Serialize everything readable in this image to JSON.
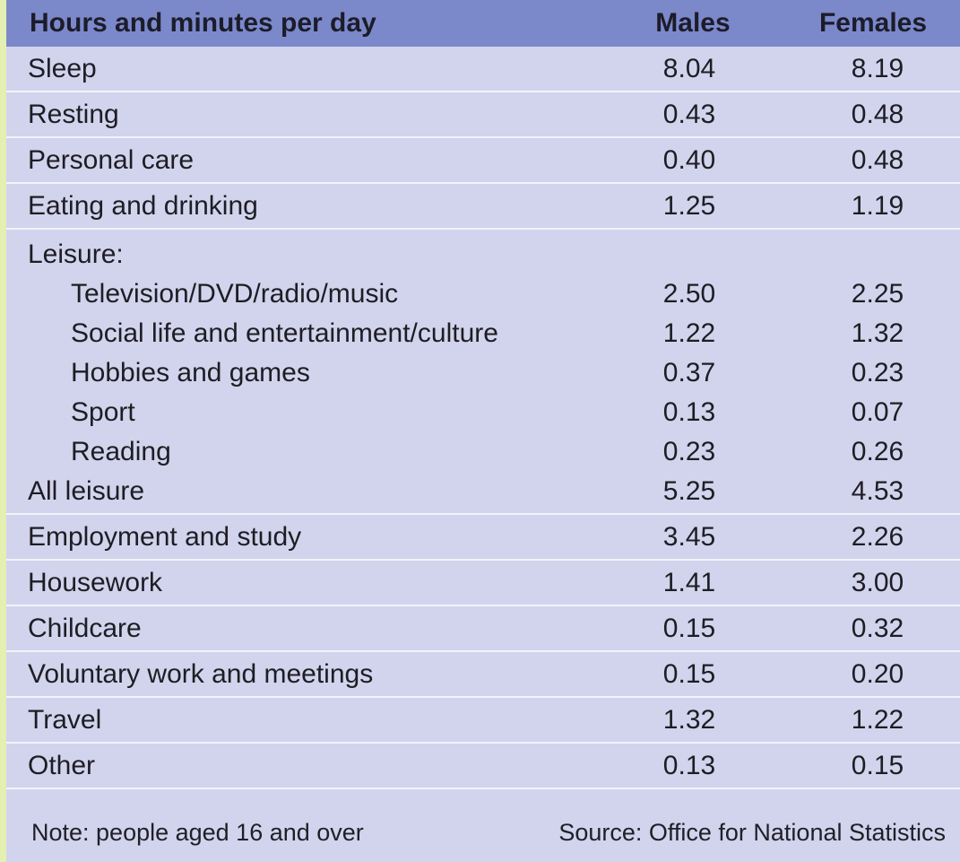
{
  "header": {
    "label": "Hours and minutes per day",
    "males": "Males",
    "females": "Females"
  },
  "rows": [
    {
      "label": "Sleep",
      "males": "8.04",
      "females": "8.19"
    },
    {
      "label": "Resting",
      "males": "0.43",
      "females": "0.48"
    },
    {
      "label": "Personal care",
      "males": "0.40",
      "females": "0.48"
    },
    {
      "label": "Eating and drinking",
      "males": "1.25",
      "females": "1.19"
    }
  ],
  "leisure": {
    "heading": "Leisure:",
    "items": [
      {
        "label": "Television/DVD/radio/music",
        "males": "2.50",
        "females": "2.25"
      },
      {
        "label": "Social life and entertainment/culture",
        "males": "1.22",
        "females": "1.32"
      },
      {
        "label": "Hobbies and games",
        "males": "0.37",
        "females": "0.23"
      },
      {
        "label": "Sport",
        "males": "0.13",
        "females": "0.07"
      },
      {
        "label": "Reading",
        "males": "0.23",
        "females": "0.26"
      }
    ],
    "total": {
      "label": "All leisure",
      "males": "5.25",
      "females": "4.53"
    }
  },
  "rows2": [
    {
      "label": "Employment and study",
      "males": "3.45",
      "females": "2.26"
    },
    {
      "label": "Housework",
      "males": "1.41",
      "females": "3.00"
    },
    {
      "label": "Childcare",
      "males": "0.15",
      "females": "0.32"
    },
    {
      "label": "Voluntary work and meetings",
      "males": "0.15",
      "females": "0.20"
    },
    {
      "label": "Travel",
      "males": "1.32",
      "females": "1.22"
    },
    {
      "label": "Other",
      "males": "0.13",
      "females": "0.15"
    }
  ],
  "footer": {
    "note": "Note: people aged 16 and over",
    "source": "Source: Office for National Statistics"
  },
  "colors": {
    "header_bg": "#7b89cb",
    "body_bg": "#d2d3ec",
    "divider": "#f2f3fa",
    "left_strip": "#e4f0b2"
  }
}
